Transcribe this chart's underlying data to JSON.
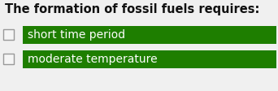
{
  "title": "The formation of fossil fuels requires:",
  "title_fontsize": 10.5,
  "title_color": "#111111",
  "title_fontweight": "bold",
  "options": [
    "short time period",
    "moderate temperature"
  ],
  "option_color": "#ffffff",
  "option_fontsize": 10,
  "bar_color": "#1e7e00",
  "background_color": "#f0f0f0",
  "checkbox_color": "#f5f5f5",
  "checkbox_edge_color": "#999999",
  "fig_width": 3.42,
  "fig_height": 1.12,
  "dpi": 100
}
